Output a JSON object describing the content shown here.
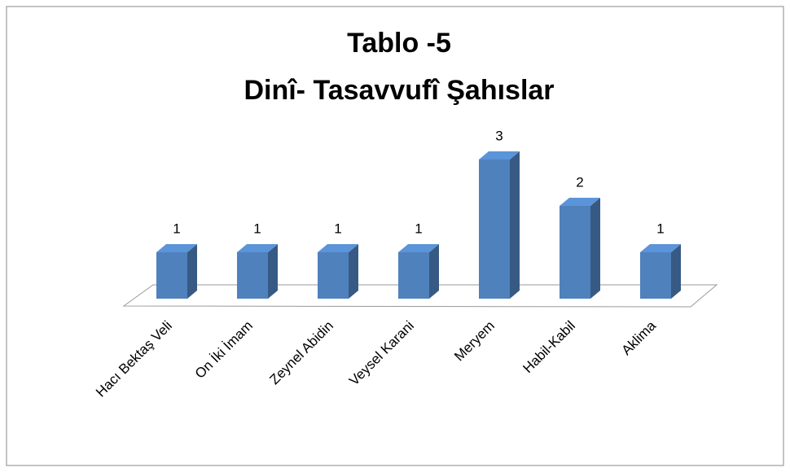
{
  "chart_data": {
    "type": "bar3d",
    "title": [
      "Tablo -5",
      "Dinî- Tasavvufî Şahıslar"
    ],
    "categories": [
      "Hacı Bektaş Veli",
      "On İki İmam",
      "Zeynel Abidin",
      "Veysel Karani",
      "Meryem",
      "Habil-Kabil",
      "Aklima"
    ],
    "values": [
      1,
      1,
      1,
      1,
      3,
      2,
      1
    ],
    "color": "#4f81bd"
  }
}
